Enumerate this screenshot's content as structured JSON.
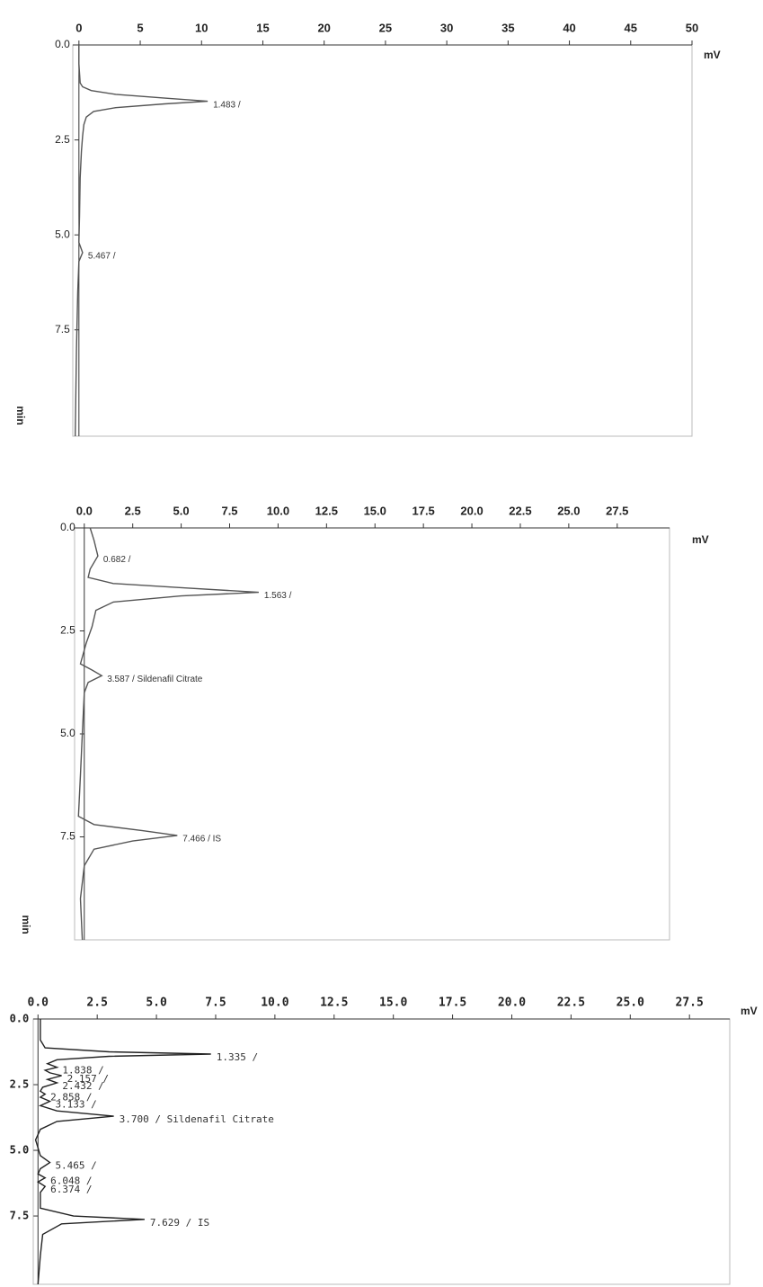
{
  "chart_data": [
    {
      "type": "line",
      "color": "#555555",
      "xlabel": "min",
      "ylabel": "mV",
      "x": [
        0,
        0.5,
        1.0,
        1.1,
        1.2,
        1.3,
        1.4,
        1.483,
        1.55,
        1.65,
        1.75,
        1.9,
        2.1,
        2.4,
        2.8,
        3.5,
        4.5,
        5.2,
        5.467,
        5.7,
        6.5,
        8,
        10.3
      ],
      "values": [
        0,
        0,
        0.1,
        0.3,
        1.0,
        3,
        7,
        10.5,
        7,
        3,
        1.2,
        0.6,
        0.4,
        0.3,
        0.2,
        0.1,
        0.05,
        0,
        0.3,
        0,
        -0.1,
        -0.2,
        -0.3
      ],
      "xlim": [
        0,
        10.3
      ],
      "xticks": [
        {
          "value": 0,
          "label": "0.0"
        },
        2.5,
        {
          "value": 5,
          "label": "5.0"
        },
        7.5
      ],
      "ylim": [
        -0.5,
        50
      ],
      "yticks": [
        0,
        5,
        10,
        15,
        20,
        25,
        30,
        35,
        40,
        45,
        50
      ],
      "annotations": [
        {
          "text": "1.483 /",
          "x": 1.483,
          "y": 10.5
        },
        {
          "text": "5.467 /",
          "x": 5.467,
          "y": 0.3
        }
      ]
    },
    {
      "type": "line",
      "color": "#555555",
      "xlabel": "min",
      "ylabel": "mV",
      "x": [
        0,
        0.3,
        0.682,
        1.0,
        1.2,
        1.35,
        1.45,
        1.563,
        1.65,
        1.8,
        2.0,
        2.4,
        2.8,
        3.3,
        3.45,
        3.587,
        3.75,
        4.0,
        5,
        6,
        7,
        7.2,
        7.35,
        7.466,
        7.6,
        7.8,
        8.2,
        9,
        10
      ],
      "values": [
        0.3,
        0.5,
        0.7,
        0.3,
        0.2,
        1.5,
        5,
        9.0,
        5,
        1.5,
        0.6,
        0.4,
        0.1,
        -0.2,
        0.4,
        0.9,
        0.2,
        0,
        -0.1,
        -0.2,
        -0.3,
        0.5,
        3,
        4.8,
        2.5,
        0.5,
        0,
        -0.2,
        -0.1
      ],
      "xlim": [
        0,
        10
      ],
      "xticks": [
        {
          "value": 0,
          "label": "0.0"
        },
        2.5,
        {
          "value": 5,
          "label": "5.0"
        },
        7.5
      ],
      "ylim": [
        -0.5,
        30.2
      ],
      "yticks": [
        {
          "value": 0,
          "label": "0.0"
        },
        2.5,
        {
          "value": 5,
          "label": "5.0"
        },
        7.5,
        {
          "value": 10,
          "label": "10.0"
        },
        12.5,
        {
          "value": 15,
          "label": "15.0"
        },
        17.5,
        {
          "value": 20,
          "label": "20.0"
        },
        22.5,
        {
          "value": 25,
          "label": "25.0"
        },
        27.5
      ],
      "annotations": [
        {
          "text": "0.682 /",
          "x": 0.682,
          "y": 0.7
        },
        {
          "text": "1.563 /",
          "x": 1.563,
          "y": 9.0
        },
        {
          "text": "3.587 / Sildenafil Citrate",
          "x": 3.587,
          "y": 0.9
        },
        {
          "text": "7.466 / IS",
          "x": 7.466,
          "y": 4.8
        }
      ]
    },
    {
      "type": "line",
      "color": "#222222",
      "ylabel": "mV",
      "x": [
        0,
        0.8,
        1.1,
        1.25,
        1.335,
        1.42,
        1.55,
        1.7,
        1.838,
        1.95,
        2.05,
        2.157,
        2.3,
        2.432,
        2.6,
        2.75,
        2.858,
        2.98,
        3.133,
        3.3,
        3.5,
        3.7,
        3.9,
        4.2,
        4.6,
        5.2,
        5.465,
        5.7,
        5.9,
        6.048,
        6.2,
        6.374,
        6.6,
        7.2,
        7.5,
        7.629,
        7.8,
        8.2,
        9,
        10.1
      ],
      "values": [
        0.1,
        0.1,
        0.3,
        3,
        7.3,
        3,
        0.8,
        0.4,
        0.8,
        0.3,
        0.5,
        1.0,
        0.4,
        0.8,
        0.2,
        0.1,
        0.3,
        0.1,
        0.5,
        0.1,
        0.8,
        3.2,
        0.8,
        0.1,
        -0.1,
        0.1,
        0.5,
        0.1,
        0,
        0.3,
        0,
        0.3,
        0.1,
        0.1,
        1.5,
        4.5,
        1,
        0.2,
        0.1,
        0
      ],
      "xlim": [
        0,
        10.1
      ],
      "xticks": [
        {
          "value": 0,
          "label": "0.0"
        },
        2.5,
        {
          "value": 5,
          "label": "5.0"
        },
        7.5
      ],
      "ylim": [
        -0.2,
        29.2
      ],
      "yticks": [
        {
          "value": 0,
          "label": "0.0"
        },
        2.5,
        {
          "value": 5,
          "label": "5.0"
        },
        7.5,
        {
          "value": 10,
          "label": "10.0"
        },
        12.5,
        {
          "value": 15,
          "label": "15.0"
        },
        17.5,
        {
          "value": 20,
          "label": "20.0"
        },
        22.5,
        {
          "value": 25,
          "label": "25.0"
        },
        27.5
      ],
      "annotations": [
        {
          "text": "1.335 /",
          "x": 1.335,
          "y": 7.3
        },
        {
          "text": "1.838 /",
          "x": 1.838,
          "y": 0.8
        },
        {
          "text": "2.157 /",
          "x": 2.157,
          "y": 1.0
        },
        {
          "text": "2.432 /",
          "x": 2.432,
          "y": 0.8
        },
        {
          "text": "2.858 /",
          "x": 2.858,
          "y": 0.3
        },
        {
          "text": "3.133 /",
          "x": 3.133,
          "y": 0.5
        },
        {
          "text": "3.700 / Sildenafil Citrate",
          "x": 3.7,
          "y": 3.2
        },
        {
          "text": "5.465 /",
          "x": 5.465,
          "y": 0.5
        },
        {
          "text": "6.048 /",
          "x": 6.048,
          "y": 0.3
        },
        {
          "text": "6.374 /",
          "x": 6.374,
          "y": 0.3
        },
        {
          "text": "7.629 / IS",
          "x": 7.629,
          "y": 4.5
        }
      ]
    }
  ]
}
